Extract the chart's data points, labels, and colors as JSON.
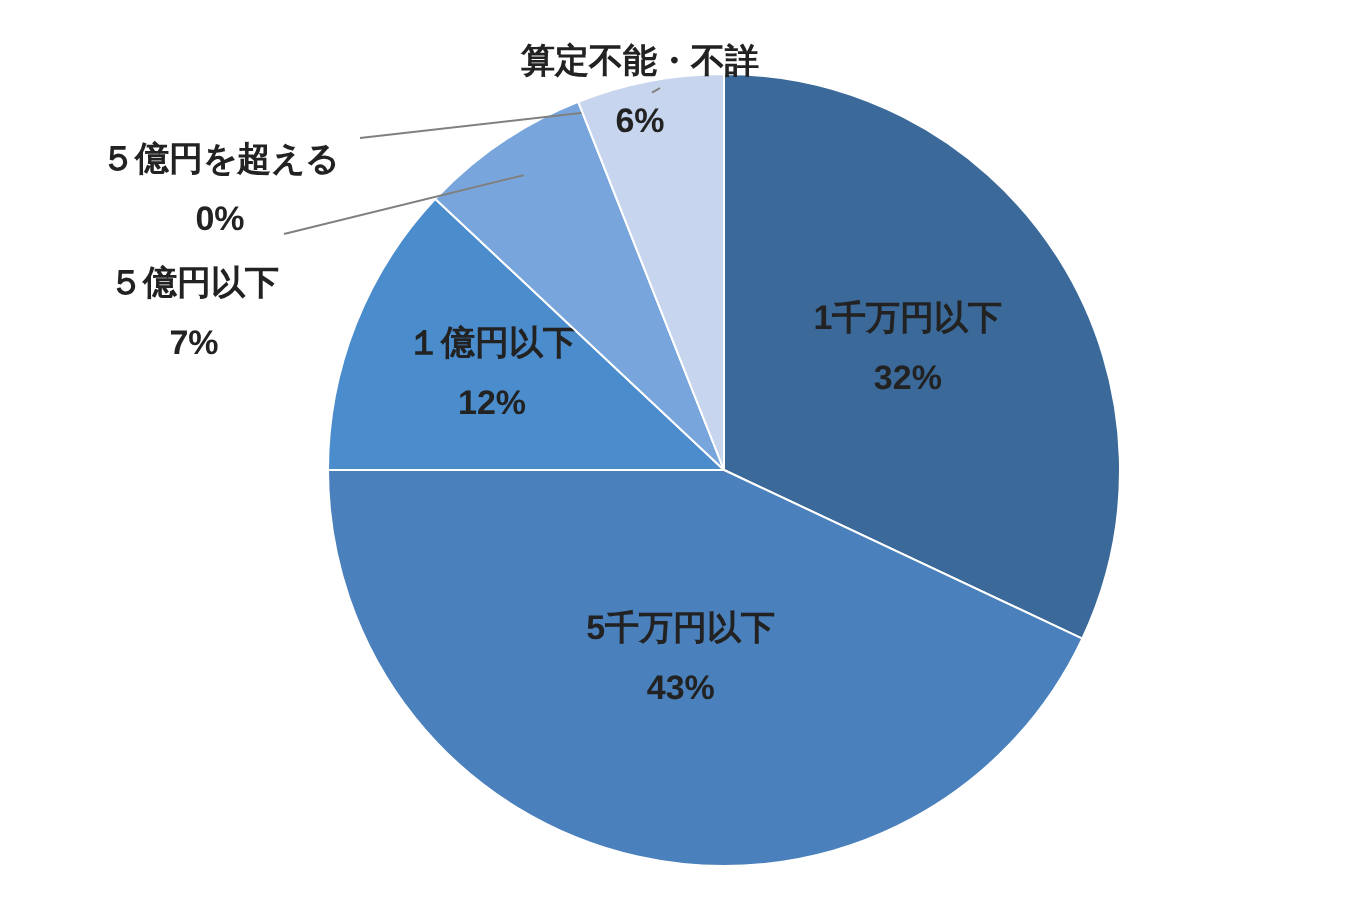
{
  "chart_data": {
    "type": "pie",
    "categories": [
      "1千万円以下",
      "5千万円以下",
      "１億円以下",
      "５億円以下",
      "５億円を超える",
      "算定不能・不詳"
    ],
    "values": [
      32,
      43,
      12,
      7,
      0,
      6
    ],
    "colors": [
      "#3b6a9a",
      "#4a80bb",
      "#4b8ccd",
      "#78a6dc",
      null,
      "#c7d6ee"
    ],
    "value_labels": [
      "32%",
      "43%",
      "12%",
      "7%",
      "0%",
      "6%"
    ]
  }
}
